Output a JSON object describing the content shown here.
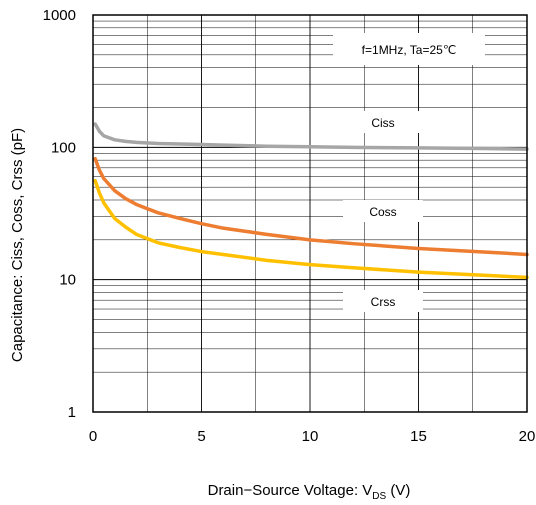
{
  "chart_data": {
    "type": "line",
    "x_scale": "linear",
    "y_scale": "log",
    "xlim": [
      0,
      20
    ],
    "ylim": [
      1,
      1000
    ],
    "x_ticks": [
      "0",
      "5",
      "10",
      "15",
      "20"
    ],
    "y_ticks": [
      "1",
      "10",
      "100",
      "1000"
    ],
    "grid": true,
    "ylabel": "Capacitance: Ciss, Coss, Crss (pF)",
    "xlabel_main": "Drain−Source Voltage: V",
    "xlabel_sub": "DS",
    "xlabel_unit": " (V)",
    "condition": "f=1MHz, Ta=25℃",
    "colors": {
      "Ciss": "#a6a6a6",
      "Coss": "#ed7d31",
      "Crss": "#ffc000"
    },
    "series": [
      {
        "name": "Ciss",
        "x": [
          0.1,
          0.3,
          0.5,
          1,
          1.5,
          2,
          3,
          4,
          5,
          6,
          8,
          10,
          12,
          15,
          18,
          20
        ],
        "y": [
          150,
          132,
          122,
          114,
          111,
          109,
          107,
          106,
          105,
          104,
          102,
          101,
          100,
          99,
          98,
          97
        ]
      },
      {
        "name": "Coss",
        "x": [
          0.1,
          0.3,
          0.5,
          1,
          1.5,
          2,
          3,
          4,
          5,
          6,
          8,
          10,
          12,
          15,
          18,
          20
        ],
        "y": [
          82,
          67,
          58,
          47,
          41,
          37,
          32,
          29,
          26.5,
          24.5,
          22,
          20,
          18.7,
          17.2,
          16.2,
          15.5
        ]
      },
      {
        "name": "Crss",
        "x": [
          0.1,
          0.3,
          0.5,
          1,
          1.5,
          2,
          3,
          4,
          5,
          6,
          8,
          10,
          12,
          15,
          18,
          20
        ],
        "y": [
          56,
          45,
          38,
          29,
          25,
          22,
          19,
          17.5,
          16.3,
          15.5,
          14,
          13,
          12.3,
          11.4,
          10.8,
          10.4
        ]
      }
    ]
  }
}
